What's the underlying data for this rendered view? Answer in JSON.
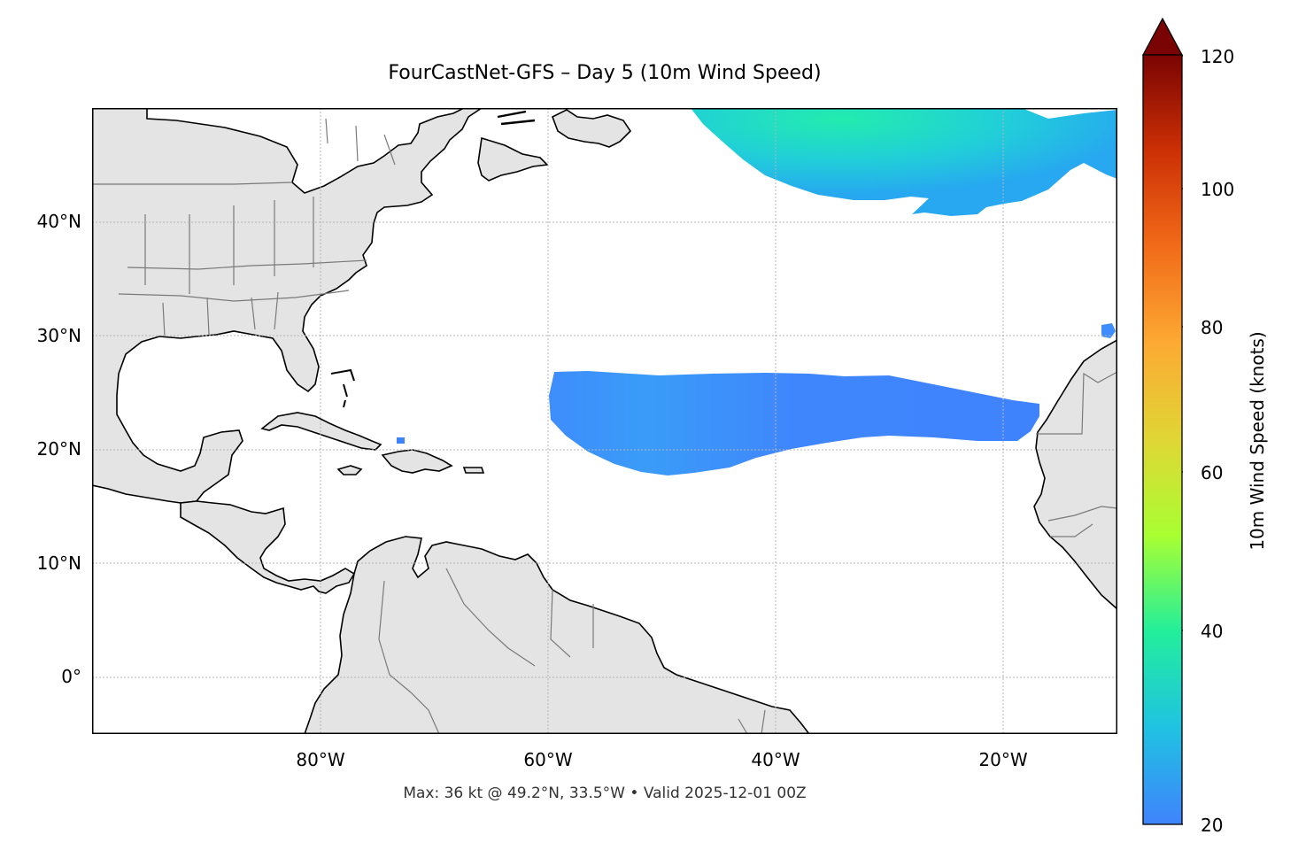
{
  "title": "FourCastNet-GFS – Day 5 (10m Wind Speed)",
  "footer": "Max: 36 kt @ 49.2°N, 33.5°W • Valid 2025-12-01 00Z",
  "lat_labels": [
    "40°N",
    "30°N",
    "20°N",
    "10°N",
    "0°"
  ],
  "lon_labels": [
    "80°W",
    "60°W",
    "40°W",
    "20°W"
  ],
  "colorbar": {
    "label": "10m Wind Speed (knots)",
    "range": [
      20,
      120
    ],
    "ticks": [
      "120",
      "100",
      "80",
      "60",
      "40",
      "20"
    ],
    "extend": "max",
    "colors": [
      "#3f83fc",
      "#20c2e2",
      "#22ee9c",
      "#a8ff32",
      "#e0d635",
      "#fcaa33",
      "#f26b19",
      "#cc3005",
      "#7a0403"
    ]
  },
  "map_colors": {
    "land": "#e4e4e4",
    "coast": "#000000",
    "borders": "#7a7a7a",
    "grid": "#b5b5b5"
  }
}
